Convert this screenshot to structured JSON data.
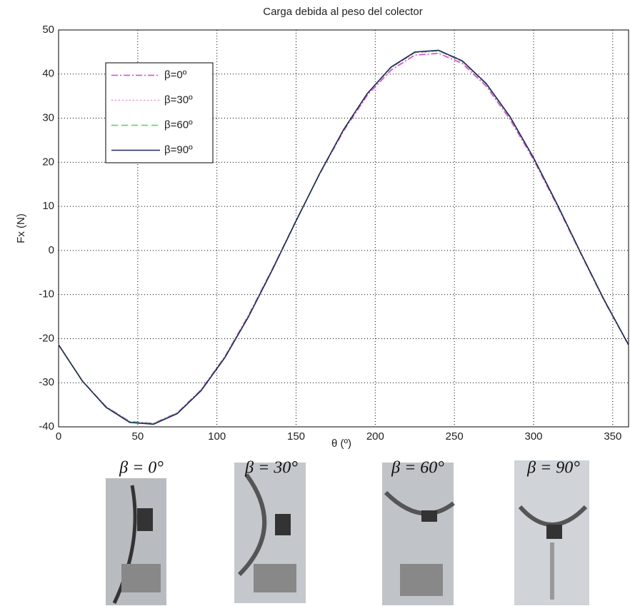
{
  "chart_data": {
    "type": "line",
    "title": "Carga debida al peso del colector",
    "xlabel": "θ (º)",
    "ylabel": "Fx (N)",
    "x": [
      0,
      15,
      30,
      45,
      60,
      75,
      90,
      105,
      120,
      135,
      150,
      165,
      180,
      195,
      210,
      225,
      240,
      255,
      270,
      285,
      300,
      315,
      330,
      345,
      360
    ],
    "series": [
      {
        "name": "β=0º",
        "color": "#e040e0",
        "dash": "9,3,2,3",
        "values": [
          -21.4,
          -29.6,
          -35.4,
          -38.8,
          -39.2,
          -36.8,
          -31.6,
          -24.1,
          -14.7,
          -4.2,
          6.8,
          17.4,
          27.1,
          35.2,
          40.9,
          44.3,
          44.7,
          42.4,
          37.3,
          29.8,
          20.6,
          10.1,
          -0.9,
          -11.7,
          -21.5
        ]
      },
      {
        "name": "β=30º",
        "color": "#ff8ccc",
        "dash": "2,3",
        "values": [
          -21.3,
          -29.5,
          -35.5,
          -38.9,
          -39.3,
          -36.9,
          -31.7,
          -24.2,
          -14.9,
          -4.3,
          6.7,
          17.5,
          27.4,
          35.5,
          41.4,
          44.8,
          45.2,
          42.8,
          37.7,
          30.2,
          20.9,
          10.3,
          -0.8,
          -11.6,
          -21.4
        ]
      },
      {
        "name": "β=60º",
        "color": "#44dd44",
        "dash": "9,5",
        "values": [
          -21.4,
          -29.6,
          -35.5,
          -38.9,
          -39.3,
          -36.9,
          -31.8,
          -24.3,
          -15.0,
          -4.4,
          6.7,
          17.5,
          27.4,
          35.6,
          41.5,
          44.9,
          45.3,
          42.9,
          37.8,
          30.3,
          21.0,
          10.4,
          -0.7,
          -11.5,
          -21.4
        ]
      },
      {
        "name": "β=90º",
        "color": "#1a2a5a",
        "dash": "none",
        "values": [
          -21.4,
          -29.6,
          -35.6,
          -39.0,
          -39.4,
          -37.0,
          -31.8,
          -24.3,
          -15.0,
          -4.4,
          6.7,
          17.5,
          27.4,
          35.6,
          41.6,
          45.0,
          45.4,
          43.0,
          37.9,
          30.4,
          21.0,
          10.4,
          -0.7,
          -11.5,
          -21.4
        ]
      }
    ],
    "xlim": [
      0,
      360
    ],
    "xticks": [
      0,
      50,
      100,
      150,
      200,
      250,
      300,
      350
    ],
    "ylim": [
      -40,
      50
    ],
    "yticks": [
      -40,
      -30,
      -20,
      -10,
      0,
      10,
      20,
      30,
      40,
      50
    ],
    "grid": true,
    "legend": "upper left"
  },
  "photo_captions": [
    "β = 0°",
    "β = 30°",
    "β = 60°",
    "β = 90°"
  ]
}
